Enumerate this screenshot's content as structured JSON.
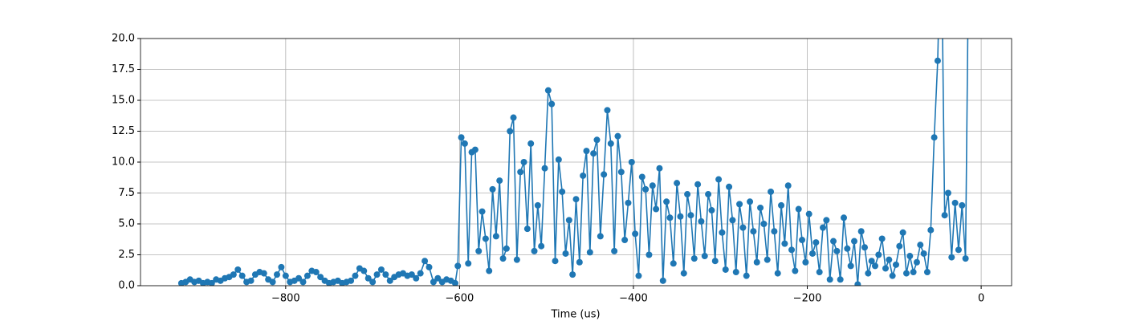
{
  "chart_data": {
    "type": "line",
    "xlabel": "Time (us)",
    "x": [
      -920,
      -915,
      -910,
      -905,
      -900,
      -895,
      -890,
      -885,
      -880,
      -875,
      -870,
      -865,
      -860,
      -855,
      -850,
      -845,
      -840,
      -835,
      -830,
      -825,
      -820,
      -815,
      -810,
      -805,
      -800,
      -795,
      -790,
      -785,
      -780,
      -775,
      -770,
      -765,
      -760,
      -755,
      -750,
      -745,
      -740,
      -735,
      -730,
      -725,
      -720,
      -715,
      -710,
      -705,
      -700,
      -695,
      -690,
      -685,
      -680,
      -675,
      -670,
      -665,
      -660,
      -655,
      -650,
      -645,
      -640,
      -635,
      -630,
      -625,
      -620,
      -615,
      -610,
      -605,
      -602,
      -598,
      -594,
      -590,
      -586,
      -582,
      -578,
      -574,
      -570,
      -566,
      -562,
      -558,
      -554,
      -550,
      -546,
      -542,
      -538,
      -534,
      -530,
      -526,
      -522,
      -518,
      -514,
      -510,
      -506,
      -502,
      -498,
      -494,
      -490,
      -486,
      -482,
      -478,
      -474,
      -470,
      -466,
      -462,
      -458,
      -454,
      -450,
      -446,
      -442,
      -438,
      -434,
      -430,
      -426,
      -422,
      -418,
      -414,
      -410,
      -406,
      -402,
      -398,
      -394,
      -390,
      -386,
      -382,
      -378,
      -374,
      -370,
      -366,
      -362,
      -358,
      -354,
      -350,
      -346,
      -342,
      -338,
      -334,
      -330,
      -326,
      -322,
      -318,
      -314,
      -310,
      -306,
      -302,
      -298,
      -294,
      -290,
      -286,
      -282,
      -278,
      -274,
      -270,
      -266,
      -262,
      -258,
      -254,
      -250,
      -246,
      -242,
      -238,
      -234,
      -230,
      -226,
      -222,
      -218,
      -214,
      -210,
      -206,
      -202,
      -198,
      -194,
      -190,
      -186,
      -182,
      -178,
      -174,
      -170,
      -166,
      -162,
      -158,
      -154,
      -150,
      -146,
      -142,
      -138,
      -134,
      -130,
      -126,
      -122,
      -118,
      -114,
      -110,
      -106,
      -102,
      -98,
      -94,
      -90,
      -86,
      -82,
      -78,
      -74,
      -70,
      -66,
      -62,
      -58,
      -54,
      -50,
      -46,
      -42,
      -38,
      -34,
      -30,
      -26,
      -22,
      -18,
      -14
    ],
    "series": [
      {
        "color": "#1f77b4",
        "values": [
          0.2,
          0.3,
          0.5,
          0.3,
          0.4,
          0.2,
          0.3,
          0.2,
          0.5,
          0.4,
          0.6,
          0.7,
          0.9,
          1.3,
          0.8,
          0.3,
          0.4,
          0.9,
          1.1,
          1.0,
          0.5,
          0.3,
          0.9,
          1.5,
          0.8,
          0.3,
          0.4,
          0.6,
          0.3,
          0.8,
          1.2,
          1.1,
          0.7,
          0.4,
          0.2,
          0.3,
          0.4,
          0.2,
          0.3,
          0.4,
          0.8,
          1.4,
          1.2,
          0.6,
          0.3,
          0.9,
          1.3,
          0.9,
          0.4,
          0.7,
          0.9,
          1.0,
          0.8,
          0.9,
          0.6,
          1.0,
          2.0,
          1.5,
          0.3,
          0.6,
          0.3,
          0.5,
          0.4,
          0.2,
          1.6,
          12.0,
          11.5,
          1.8,
          10.8,
          11.0,
          2.8,
          6.0,
          3.8,
          1.2,
          7.8,
          4.0,
          8.5,
          2.2,
          3.0,
          12.5,
          13.6,
          2.1,
          9.2,
          10.0,
          4.6,
          11.5,
          2.8,
          6.5,
          3.2,
          9.5,
          15.8,
          14.7,
          2.0,
          10.2,
          7.6,
          2.6,
          5.3,
          0.9,
          7.0,
          1.9,
          8.9,
          10.9,
          2.7,
          10.7,
          11.8,
          4.0,
          9.0,
          14.2,
          11.5,
          2.8,
          12.1,
          9.2,
          3.7,
          6.7,
          10.0,
          4.2,
          0.8,
          8.8,
          7.8,
          2.5,
          8.1,
          6.2,
          9.5,
          0.4,
          6.8,
          5.5,
          1.8,
          8.3,
          5.6,
          1.0,
          7.4,
          5.7,
          2.2,
          8.2,
          5.2,
          2.4,
          7.4,
          6.1,
          2.0,
          8.6,
          4.3,
          1.3,
          8.0,
          5.3,
          1.1,
          6.6,
          4.7,
          0.8,
          6.8,
          4.4,
          1.9,
          6.3,
          5.0,
          2.1,
          7.6,
          4.4,
          1.0,
          6.5,
          3.4,
          8.1,
          2.9,
          1.2,
          6.2,
          3.7,
          1.9,
          5.8,
          2.6,
          3.5,
          1.1,
          4.7,
          5.3,
          0.5,
          3.6,
          2.8,
          0.5,
          5.5,
          3.0,
          1.6,
          3.6,
          0.1,
          4.4,
          3.1,
          1.0,
          2.0,
          1.6,
          2.5,
          3.8,
          1.4,
          2.1,
          0.8,
          1.7,
          3.2,
          4.3,
          1.0,
          2.4,
          1.1,
          1.9,
          3.3,
          2.6,
          1.1,
          4.5,
          12.0,
          18.2,
          30,
          5.7,
          7.5,
          2.3,
          6.7,
          2.9,
          6.5,
          2.2,
          30
        ]
      }
    ],
    "xlim": [
      -967,
      35
    ],
    "ylim": [
      0,
      20
    ],
    "xticks": [
      {
        "value": -800,
        "label": "−800"
      },
      {
        "value": -600,
        "label": "−600"
      },
      {
        "value": -400,
        "label": "−400"
      },
      {
        "value": -200,
        "label": "−200"
      },
      0
    ],
    "yticks": [
      {
        "value": 0,
        "label": "0.0"
      },
      {
        "value": 2.5,
        "label": "2.5"
      },
      {
        "value": 5,
        "label": "5.0"
      },
      {
        "value": 7.5,
        "label": "7.5"
      },
      {
        "value": 10,
        "label": "10.0"
      },
      {
        "value": 12.5,
        "label": "12.5"
      },
      {
        "value": 15,
        "label": "15.0"
      },
      {
        "value": 17.5,
        "label": "17.5"
      },
      {
        "value": 20,
        "label": "20.0"
      }
    ],
    "grid": true
  }
}
